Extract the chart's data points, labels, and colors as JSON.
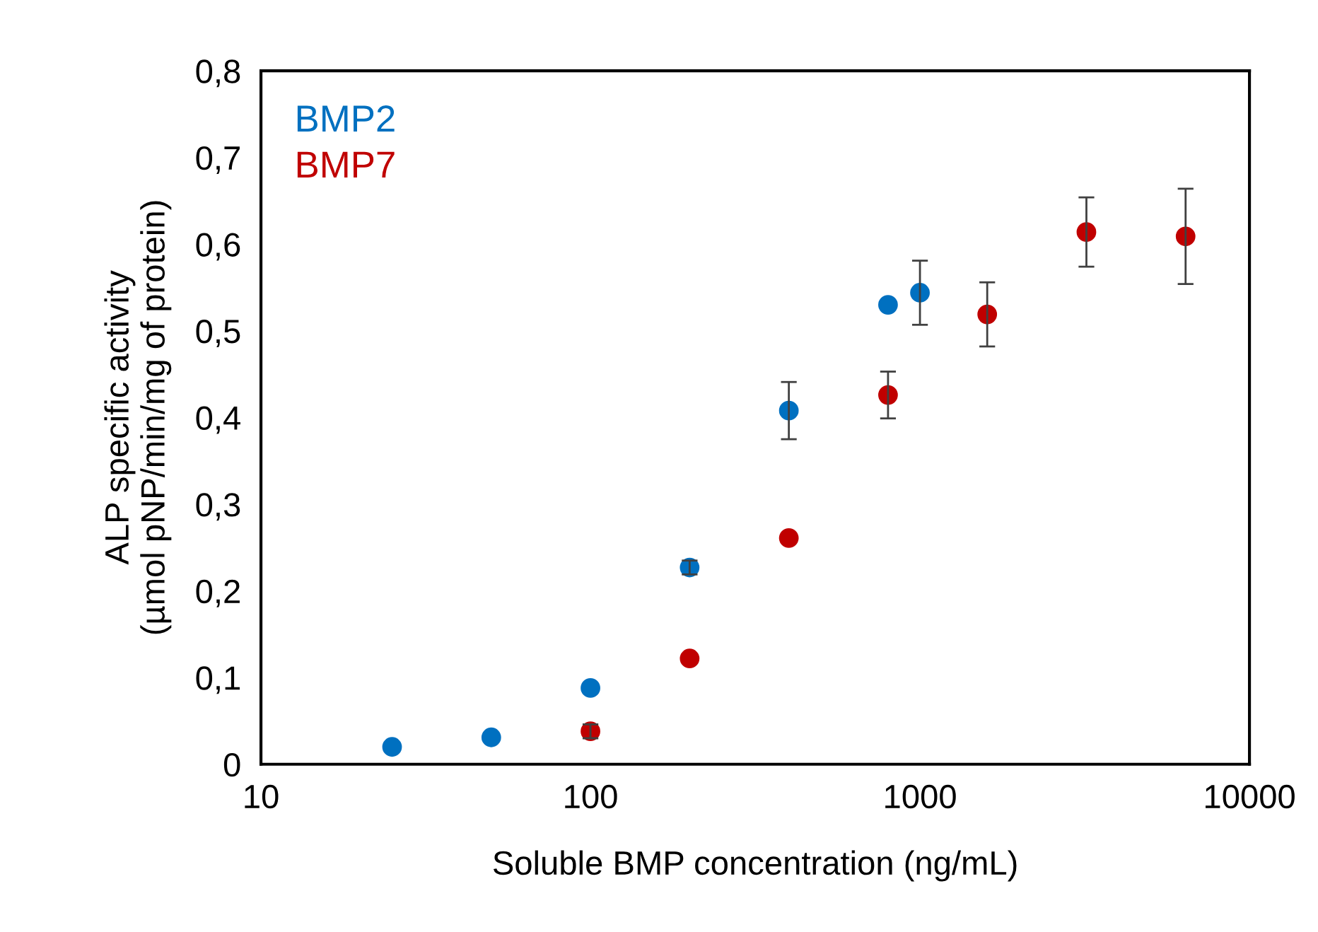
{
  "chart_data": {
    "type": "scatter",
    "xlabel": "Soluble BMP concentration (ng/mL)",
    "ylabel": "ALP specific activity\n(µmol pNP/min/mg of protein)",
    "log": "x",
    "xlim": [
      10,
      10000
    ],
    "xticks": [
      10,
      100,
      1000,
      10000
    ],
    "ylim": [
      0,
      0.8
    ],
    "yticks": [
      0,
      {
        "value": 0.1,
        "label": "0,1"
      },
      {
        "value": 0.2,
        "label": "0,2"
      },
      {
        "value": 0.3,
        "label": "0,3"
      },
      {
        "value": 0.4,
        "label": "0,4"
      },
      {
        "value": 0.5,
        "label": "0,5"
      },
      {
        "value": 0.6,
        "label": "0,6"
      },
      {
        "value": 0.7,
        "label": "0,7"
      },
      {
        "value": 0.8,
        "label": "0,8"
      }
    ],
    "grid": false,
    "legend": "top left",
    "marker": "circle",
    "series": [
      {
        "name": "BMP2",
        "color": "#0070c0",
        "x": [
          25,
          50,
          100,
          200,
          400,
          800,
          1000
        ],
        "values": [
          0.02,
          0.031,
          0.088,
          0.227,
          0.408,
          0.53,
          0.544
        ],
        "errors": [
          null,
          null,
          null,
          0.008,
          0.033,
          null,
          0.037
        ]
      },
      {
        "name": "BMP7",
        "color": "#c00000",
        "x": [
          100,
          200,
          400,
          800,
          1600,
          3200,
          6400
        ],
        "values": [
          0.038,
          0.122,
          0.261,
          0.426,
          0.519,
          0.614,
          0.609
        ],
        "errors": [
          0.008,
          null,
          null,
          0.027,
          0.037,
          0.04,
          0.055
        ]
      }
    ]
  }
}
